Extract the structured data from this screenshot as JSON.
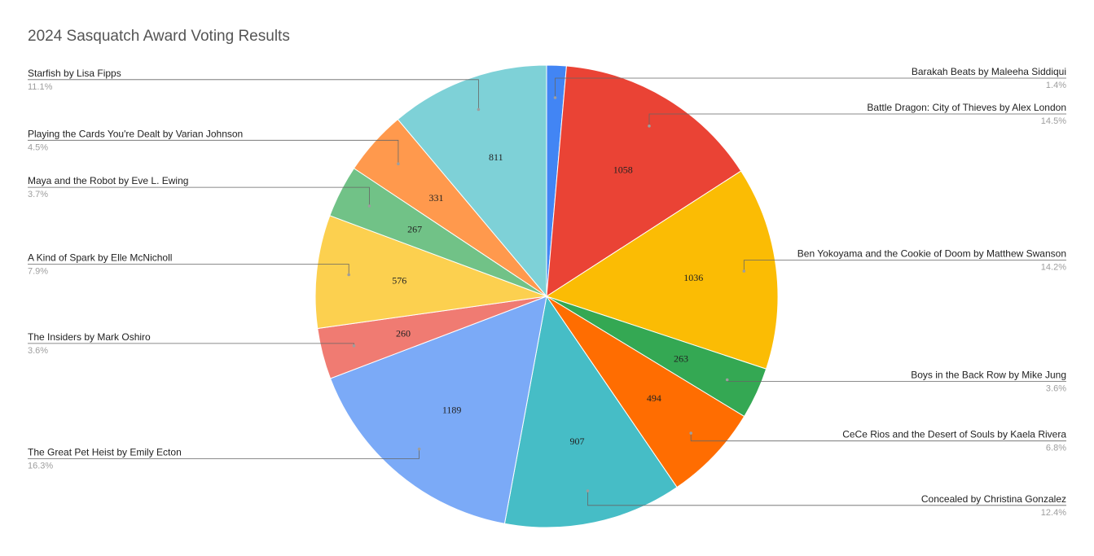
{
  "chart_data": {
    "type": "pie",
    "title": "2024 Sasquatch Award Voting Results",
    "slices": [
      {
        "label": "Barakah Beats by Maleeha Siddiqui",
        "value": 100,
        "percent": "1.4%",
        "color": "#4285f4"
      },
      {
        "label": "Battle Dragon: City of Thieves by Alex London",
        "value": 1058,
        "percent": "14.5%",
        "color": "#ea4335"
      },
      {
        "label": "Ben Yokoyama and the Cookie of Doom by Matthew Swanson",
        "value": 1036,
        "percent": "14.2%",
        "color": "#fbbc04"
      },
      {
        "label": "Boys in the Back Row by Mike Jung",
        "value": 263,
        "percent": "3.6%",
        "color": "#34a853"
      },
      {
        "label": "CeCe Rios and the Desert of Souls by Kaela Rivera",
        "value": 494,
        "percent": "6.8%",
        "color": "#ff6d01"
      },
      {
        "label": "Concealed by Christina Gonzalez",
        "value": 907,
        "percent": "12.4%",
        "color": "#46bdc6"
      },
      {
        "label": "The Great Pet Heist by Emily Ecton",
        "value": 1189,
        "percent": "16.3%",
        "color": "#7baaf7"
      },
      {
        "label": "The Insiders by Mark Oshiro",
        "value": 260,
        "percent": "3.6%",
        "color": "#f07b72"
      },
      {
        "label": "A Kind of Spark by Elle McNicholl",
        "value": 576,
        "percent": "7.9%",
        "color": "#fcd04f"
      },
      {
        "label": "Maya and the Robot by Eve L. Ewing",
        "value": 267,
        "percent": "3.7%",
        "color": "#71c287"
      },
      {
        "label": "Playing the Cards You're Dealt by Varian Johnson",
        "value": 331,
        "percent": "4.5%",
        "color": "#ff994d"
      },
      {
        "label": "Starfish by Lisa Fipps",
        "value": 811,
        "percent": "11.1%",
        "color": "#7ed1d7"
      }
    ],
    "legend": "labels-with-leader-lines"
  }
}
